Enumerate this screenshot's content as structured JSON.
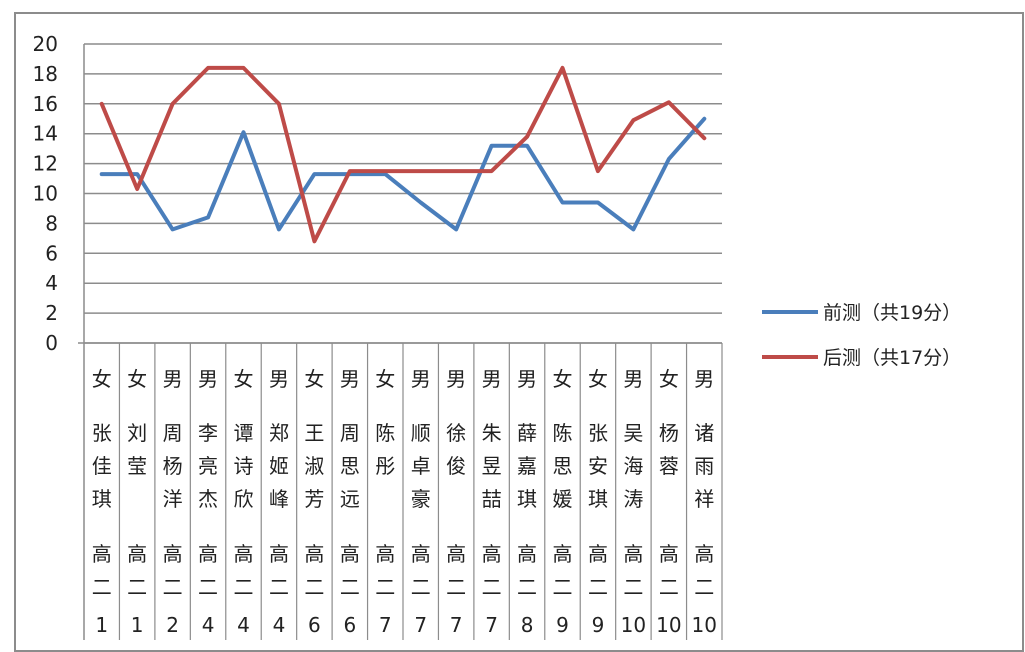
{
  "chart_data": {
    "type": "line",
    "title": "",
    "xlabel": "",
    "ylabel": "",
    "ylim": [
      0,
      20
    ],
    "yticks": [
      "0",
      "2",
      "4",
      "6",
      "8",
      "10",
      "12",
      "14",
      "16",
      "18",
      "20"
    ],
    "grid": true,
    "legend_position": "right",
    "categories": [
      {
        "gender": "女",
        "name": "张佳琪",
        "grade": "高二",
        "cls": "1"
      },
      {
        "gender": "女",
        "name": "刘莹",
        "grade": "高二",
        "cls": "1"
      },
      {
        "gender": "男",
        "name": "周杨洋",
        "grade": "高二",
        "cls": "2"
      },
      {
        "gender": "男",
        "name": "李亮杰",
        "grade": "高二",
        "cls": "4"
      },
      {
        "gender": "女",
        "name": "谭诗欣",
        "grade": "高二",
        "cls": "4"
      },
      {
        "gender": "男",
        "name": "郑姬峰",
        "grade": "高二",
        "cls": "4"
      },
      {
        "gender": "女",
        "name": "王淑芳",
        "grade": "高二",
        "cls": "6"
      },
      {
        "gender": "男",
        "name": "周思远",
        "grade": "高二",
        "cls": "6"
      },
      {
        "gender": "女",
        "name": "陈彤",
        "grade": "高二",
        "cls": "7"
      },
      {
        "gender": "男",
        "name": "顺卓豪",
        "grade": "高二",
        "cls": "7"
      },
      {
        "gender": "男",
        "name": "徐俊",
        "grade": "高二",
        "cls": "7"
      },
      {
        "gender": "男",
        "name": "朱昱喆",
        "grade": "高二",
        "cls": "7"
      },
      {
        "gender": "男",
        "name": "薛嘉琪",
        "grade": "高二",
        "cls": "8"
      },
      {
        "gender": "女",
        "name": "陈思媛",
        "grade": "高二",
        "cls": "9"
      },
      {
        "gender": "女",
        "name": "张安琪",
        "grade": "高二",
        "cls": "9"
      },
      {
        "gender": "男",
        "name": "吴海涛",
        "grade": "高二",
        "cls": "10"
      },
      {
        "gender": "女",
        "name": "杨蓉",
        "grade": "高二",
        "cls": "10"
      },
      {
        "gender": "男",
        "name": "诸雨祥",
        "grade": "高二",
        "cls": "10"
      }
    ],
    "series": [
      {
        "name": "前测（共19分）",
        "color": "#4a7ebb",
        "values": [
          11.3,
          11.3,
          7.6,
          8.4,
          14.1,
          7.6,
          11.3,
          11.3,
          11.3,
          9.4,
          7.6,
          13.2,
          13.2,
          9.4,
          9.4,
          7.6,
          12.3,
          15.0
        ]
      },
      {
        "name": "后测（共17分）",
        "color": "#be4b48",
        "values": [
          16.0,
          10.3,
          16.0,
          18.4,
          18.4,
          16.0,
          6.8,
          11.5,
          11.5,
          11.5,
          11.5,
          11.5,
          13.8,
          18.4,
          11.5,
          14.9,
          16.1,
          13.7
        ]
      }
    ]
  }
}
